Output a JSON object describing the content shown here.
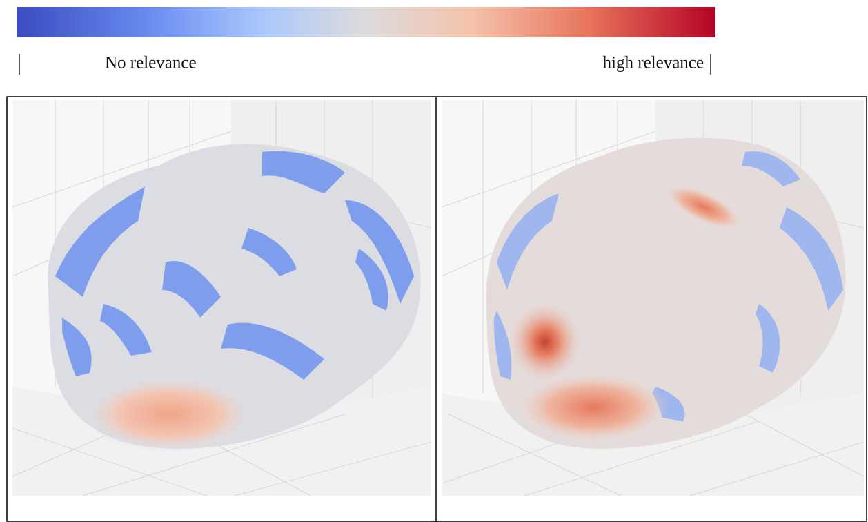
{
  "colorbar": {
    "low_label": "No relevance",
    "high_label": "high relevance"
  }
}
